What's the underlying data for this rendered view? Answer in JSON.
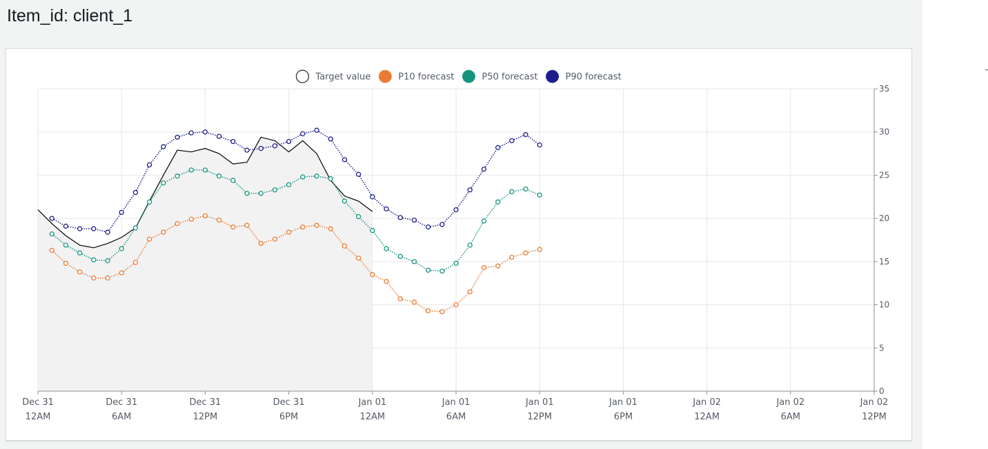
{
  "page": {
    "title": "Item_id: client_1"
  },
  "colors": {
    "target": "#000000",
    "target_fill": "#f2f2f2",
    "p10": "#ec7a33",
    "p50": "#14947f",
    "p90": "#1c1c8c",
    "grid": "#e6e6e6",
    "text": "#545b64"
  },
  "chart_data": {
    "type": "line",
    "title": "",
    "xlabel": "",
    "ylabel": "",
    "ylim": [
      0,
      35
    ],
    "yticks": [
      0,
      5,
      10,
      15,
      20,
      25,
      30,
      35
    ],
    "y_axis_position": "right",
    "grid": true,
    "legend_position": "top-center",
    "xlim": [
      "Dec 31 12AM",
      "Jan 02 12PM"
    ],
    "x_tick_hours": [
      0,
      6,
      12,
      18,
      24,
      30,
      36,
      42,
      48,
      54,
      60
    ],
    "x_ticks": [
      {
        "date": "Dec 31",
        "time": "12AM"
      },
      {
        "date": "Dec 31",
        "time": "6AM"
      },
      {
        "date": "Dec 31",
        "time": "12PM"
      },
      {
        "date": "Dec 31",
        "time": "6PM"
      },
      {
        "date": "Jan 01",
        "time": "12AM"
      },
      {
        "date": "Jan 01",
        "time": "6AM"
      },
      {
        "date": "Jan 01",
        "time": "12PM"
      },
      {
        "date": "Jan 01",
        "time": "6PM"
      },
      {
        "date": "Jan 02",
        "time": "12AM"
      },
      {
        "date": "Jan 02",
        "time": "6AM"
      },
      {
        "date": "Jan 02",
        "time": "12PM"
      }
    ],
    "series": [
      {
        "name": "Target value",
        "key": "target",
        "style": "area",
        "x_start_hour": 0,
        "step_hours": 1,
        "values": [
          21.0,
          19.4,
          18.0,
          16.9,
          16.6,
          17.1,
          17.8,
          18.9,
          22.0,
          25.0,
          27.9,
          27.7,
          28.1,
          27.5,
          26.3,
          26.5,
          29.4,
          29.0,
          27.7,
          29.0,
          27.5,
          24.4,
          22.6,
          22.0,
          20.8
        ]
      },
      {
        "name": "P10 forecast",
        "key": "p10",
        "style": "dotted",
        "x_start_hour": 1,
        "step_hours": 1,
        "values": [
          16.3,
          14.8,
          13.8,
          13.1,
          13.1,
          13.7,
          14.9,
          17.6,
          18.4,
          19.4,
          19.9,
          20.3,
          19.8,
          19.0,
          19.2,
          17.1,
          17.6,
          18.4,
          19.0,
          19.2,
          18.8,
          16.8,
          15.4,
          13.5,
          12.7,
          10.7,
          10.3,
          9.3,
          9.2,
          10.0,
          11.5,
          14.3,
          14.5,
          15.5,
          16.0,
          16.4
        ]
      },
      {
        "name": "P50 forecast",
        "key": "p50",
        "style": "dotted",
        "x_start_hour": 1,
        "step_hours": 1,
        "values": [
          18.2,
          16.9,
          16.0,
          15.2,
          15.1,
          16.5,
          18.9,
          21.9,
          24.1,
          24.9,
          25.6,
          25.6,
          24.9,
          24.4,
          22.9,
          22.9,
          23.3,
          23.9,
          24.8,
          24.9,
          24.6,
          22.0,
          20.2,
          18.6,
          16.5,
          15.6,
          15.0,
          14.0,
          13.9,
          14.8,
          16.9,
          19.7,
          21.9,
          23.1,
          23.4,
          22.7
        ]
      },
      {
        "name": "P90 forecast",
        "key": "p90",
        "style": "dotted",
        "x_start_hour": 1,
        "step_hours": 1,
        "values": [
          20.0,
          19.1,
          18.8,
          18.8,
          18.4,
          20.7,
          23.0,
          26.2,
          28.3,
          29.4,
          29.9,
          30.0,
          29.5,
          28.9,
          27.9,
          28.1,
          28.4,
          28.9,
          29.8,
          30.2,
          29.2,
          26.8,
          25.1,
          22.5,
          21.1,
          20.1,
          19.8,
          19.0,
          19.3,
          21.0,
          23.3,
          25.7,
          28.2,
          29.0,
          29.7,
          28.5
        ]
      }
    ]
  }
}
